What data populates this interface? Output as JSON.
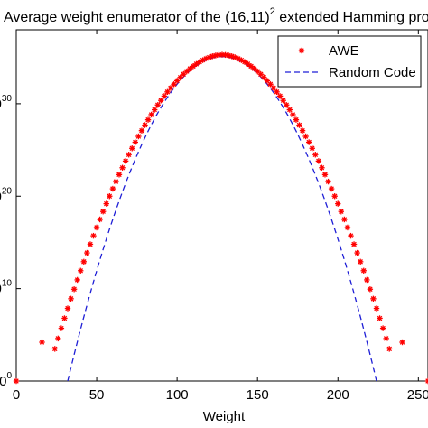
{
  "chart_data": {
    "type": "scatter",
    "title": {
      "text": "Average weight enumerator of the (16,11)",
      "superscript": "2",
      "suffix": " extended Hamming product c"
    },
    "xlabel": "Weight",
    "ylabel": "",
    "xlim": [
      0,
      256
    ],
    "ylim_log10": [
      0,
      38
    ],
    "x_ticks": [
      0,
      50,
      100,
      150,
      200,
      250
    ],
    "x_tick_labels": [
      "0",
      "50",
      "100",
      "150",
      "200",
      "250"
    ],
    "y_tick_exponents": [
      0,
      10,
      20,
      30
    ],
    "y_tick_labels": [
      "0",
      "10",
      "20",
      "30"
    ],
    "y_tick_base": "10",
    "scale": "log-y",
    "grid": false,
    "legend_position": "top-right",
    "series": [
      {
        "name": "AWE",
        "style": "red-asterisk-markers",
        "color": "#ff0000",
        "x_step": 2,
        "points": [
          [
            0,
            0
          ],
          [
            16,
            4.2
          ],
          [
            24,
            7.0
          ],
          [
            128,
            35.3
          ],
          [
            232,
            7.0
          ],
          [
            240,
            4.2
          ],
          [
            256,
            0
          ]
        ],
        "peak_weight": 128,
        "peak_log10": 35.3,
        "curve_exponent": 1.85,
        "curve_range": [
          24,
          232
        ]
      },
      {
        "name": "Random Code",
        "style": "dashed-line",
        "color": "#1f1fd6",
        "x_range": [
          32,
          224
        ],
        "peak_weight": 128,
        "peak_log10": 35.1,
        "curve_exponent": 2.0
      }
    ]
  }
}
